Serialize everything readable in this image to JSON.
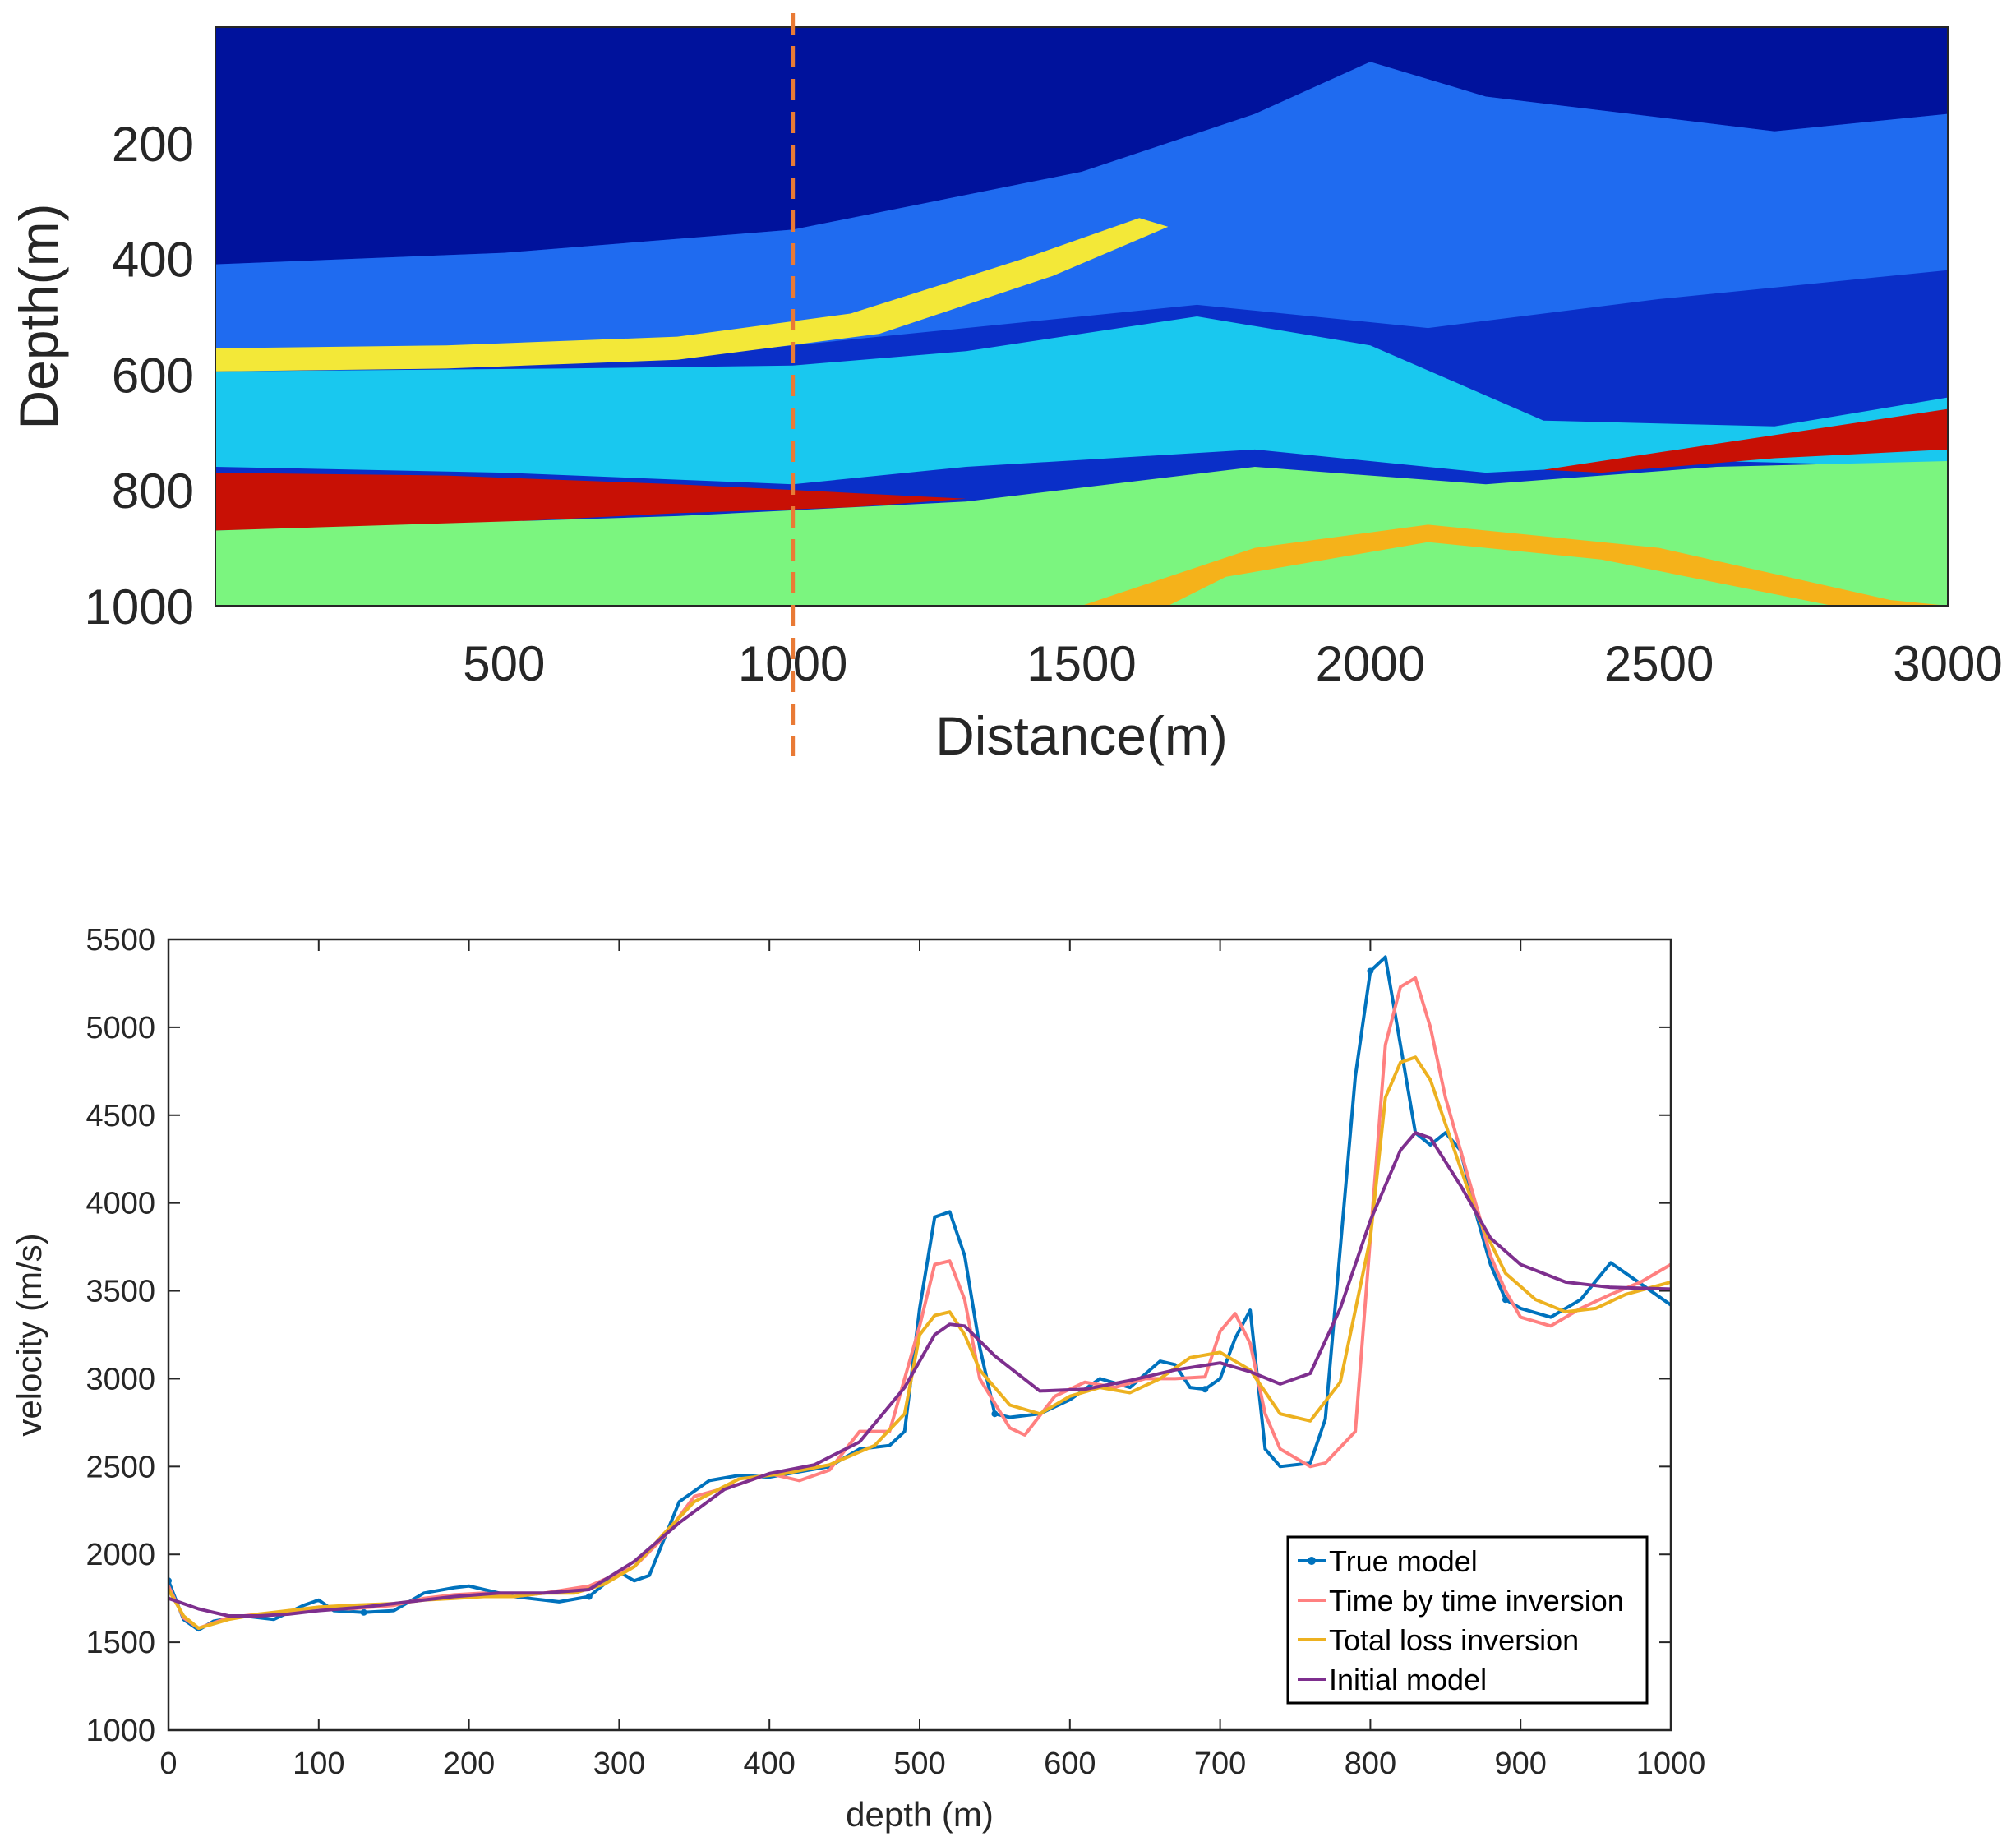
{
  "chart_data": [
    {
      "type": "heatmap",
      "title": "",
      "xlabel": "Distance(m)",
      "ylabel": "Depth(m)",
      "xlim": [
        0,
        3000
      ],
      "ylim": [
        1000,
        0
      ],
      "xticks": [
        500,
        1000,
        1500,
        2000,
        2500,
        3000
      ],
      "yticks": [
        200,
        400,
        600,
        800,
        1000
      ],
      "xtick_labels": [
        "500",
        "1000",
        "1500",
        "2000",
        "2500",
        "3000"
      ],
      "ytick_labels": [
        "200",
        "400",
        "600",
        "800",
        "1000"
      ],
      "colormap": "jet",
      "marker_line": {
        "x": 1000,
        "style": "dashed",
        "color": "#e97a35"
      },
      "bands": [
        {
          "name": "deep-blue-top",
          "points": [
            [
              0,
              0
            ],
            [
              3000,
              0
            ],
            [
              3000,
              150
            ],
            [
              2700,
              180
            ],
            [
              2200,
              120
            ],
            [
              2000,
              60
            ],
            [
              1800,
              150
            ],
            [
              1500,
              250
            ],
            [
              1000,
              350
            ],
            [
              500,
              390
            ],
            [
              0,
              410
            ]
          ],
          "color": "#00129c"
        },
        {
          "name": "layer-low",
          "points": [
            [
              0,
              410
            ],
            [
              500,
              390
            ],
            [
              1000,
              350
            ],
            [
              1500,
              250
            ],
            [
              1800,
              150
            ],
            [
              2000,
              60
            ],
            [
              2200,
              120
            ],
            [
              2700,
              180
            ],
            [
              3000,
              150
            ],
            [
              3000,
              420
            ],
            [
              2500,
              470
            ],
            [
              2100,
              520
            ],
            [
              1700,
              480
            ],
            [
              1300,
              520
            ],
            [
              900,
              560
            ],
            [
              500,
              585
            ],
            [
              0,
              590
            ]
          ],
          "color": "#1f6bf0"
        },
        {
          "name": "reflector-yellow-560",
          "points": [
            [
              0,
              555
            ],
            [
              400,
              550
            ],
            [
              800,
              535
            ],
            [
              1100,
              495
            ],
            [
              1400,
              400
            ],
            [
              1600,
              330
            ],
            [
              1650,
              345
            ],
            [
              1450,
              430
            ],
            [
              1150,
              530
            ],
            [
              800,
              575
            ],
            [
              400,
              590
            ],
            [
              0,
              595
            ]
          ],
          "color": "#f3e838"
        },
        {
          "name": "layer-mid",
          "points": [
            [
              0,
              595
            ],
            [
              600,
              590
            ],
            [
              1000,
              585
            ],
            [
              1300,
              560
            ],
            [
              1700,
              500
            ],
            [
              2000,
              550
            ],
            [
              2300,
              680
            ],
            [
              2700,
              690
            ],
            [
              3000,
              640
            ],
            [
              3000,
              760
            ],
            [
              2600,
              750
            ],
            [
              2200,
              770
            ],
            [
              1800,
              730
            ],
            [
              1300,
              760
            ],
            [
              1000,
              790
            ],
            [
              500,
              770
            ],
            [
              0,
              760
            ]
          ],
          "color": "#19c8ef"
        },
        {
          "name": "reflector-red-800",
          "points": [
            [
              0,
              770
            ],
            [
              400,
              775
            ],
            [
              800,
              790
            ],
            [
              1100,
              805
            ],
            [
              1300,
              815
            ],
            [
              1100,
              830
            ],
            [
              800,
              840
            ],
            [
              400,
              860
            ],
            [
              0,
              870
            ]
          ],
          "color": "#c81005"
        },
        {
          "name": "reflector-red-right",
          "points": [
            [
              2300,
              765
            ],
            [
              2600,
              720
            ],
            [
              3000,
              660
            ],
            [
              3000,
              730
            ],
            [
              2700,
              745
            ],
            [
              2400,
              770
            ]
          ],
          "color": "#c81005"
        },
        {
          "name": "layer-deep",
          "points": [
            [
              0,
              870
            ],
            [
              800,
              845
            ],
            [
              1300,
              820
            ],
            [
              1800,
              760
            ],
            [
              2200,
              790
            ],
            [
              2600,
              760
            ],
            [
              3000,
              750
            ],
            [
              3000,
              1000
            ],
            [
              0,
              1000
            ]
          ],
          "color": "#7bf57f"
        },
        {
          "name": "reflector-yellow-deep",
          "points": [
            [
              1500,
              1000
            ],
            [
              1800,
              900
            ],
            [
              2100,
              860
            ],
            [
              2500,
              900
            ],
            [
              2900,
              990
            ],
            [
              3000,
              1000
            ],
            [
              2800,
              1000
            ],
            [
              2400,
              920
            ],
            [
              2100,
              890
            ],
            [
              1750,
              950
            ],
            [
              1650,
              1000
            ]
          ],
          "color": "#f5b21a"
        }
      ]
    },
    {
      "type": "line",
      "title": "",
      "xlabel": "depth (m)",
      "ylabel": "velocity (m/s)",
      "xlim": [
        0,
        1000
      ],
      "ylim": [
        1000,
        5500
      ],
      "xticks": [
        0,
        100,
        200,
        300,
        400,
        500,
        600,
        700,
        800,
        900,
        1000
      ],
      "yticks": [
        1000,
        1500,
        2000,
        2500,
        3000,
        3500,
        4000,
        4500,
        5000,
        5500
      ],
      "xtick_labels": [
        "0",
        "100",
        "200",
        "300",
        "400",
        "500",
        "600",
        "700",
        "800",
        "900",
        "1000"
      ],
      "ytick_labels": [
        "1000",
        "1500",
        "2000",
        "2500",
        "3000",
        "3500",
        "4000",
        "4500",
        "5000",
        "5500"
      ],
      "legend": {
        "position": "lower-right",
        "entries": [
          "True model",
          "Time by time inversion",
          "Total loss inversion",
          "Initial model"
        ]
      },
      "series": [
        {
          "name": "True model",
          "color": "#0072bd",
          "marker": "dot",
          "x": [
            0,
            10,
            20,
            30,
            50,
            70,
            90,
            100,
            110,
            130,
            150,
            170,
            190,
            200,
            210,
            230,
            240,
            260,
            280,
            300,
            310,
            320,
            340,
            360,
            380,
            400,
            420,
            440,
            460,
            480,
            490,
            500,
            510,
            520,
            530,
            540,
            550,
            560,
            580,
            600,
            620,
            640,
            660,
            670,
            680,
            690,
            700,
            710,
            720,
            730,
            740,
            760,
            770,
            790,
            800,
            810,
            820,
            830,
            840,
            850,
            860,
            870,
            880,
            890,
            900,
            920,
            940,
            960,
            970,
            990,
            1000
          ],
          "y": [
            1850,
            1630,
            1570,
            1620,
            1650,
            1630,
            1710,
            1740,
            1680,
            1670,
            1680,
            1780,
            1810,
            1820,
            1800,
            1760,
            1750,
            1730,
            1760,
            1900,
            1850,
            1880,
            2300,
            2420,
            2450,
            2440,
            2470,
            2500,
            2600,
            2620,
            2700,
            3400,
            3920,
            3950,
            3700,
            3180,
            2800,
            2780,
            2800,
            2880,
            3000,
            2950,
            3100,
            3080,
            2950,
            2940,
            3000,
            3230,
            3390,
            2600,
            2500,
            2520,
            2770,
            4720,
            5320,
            5400,
            4900,
            4400,
            4330,
            4400,
            4300,
            3950,
            3650,
            3450,
            3400,
            3350,
            3450,
            3660,
            3600,
            3480,
            3420
          ]
        },
        {
          "name": "Time by time inversion",
          "color": "#ff8080",
          "marker": "none",
          "x": [
            0,
            10,
            20,
            40,
            60,
            80,
            100,
            120,
            150,
            170,
            190,
            210,
            230,
            250,
            280,
            310,
            330,
            350,
            380,
            400,
            420,
            440,
            460,
            480,
            500,
            510,
            520,
            530,
            540,
            560,
            570,
            590,
            610,
            630,
            650,
            670,
            690,
            700,
            710,
            720,
            730,
            740,
            760,
            770,
            790,
            800,
            810,
            820,
            830,
            840,
            850,
            870,
            880,
            890,
            900,
            920,
            940,
            960,
            980,
            1000
          ],
          "y": [
            1820,
            1640,
            1580,
            1640,
            1660,
            1670,
            1700,
            1690,
            1710,
            1750,
            1770,
            1780,
            1760,
            1780,
            1820,
            1930,
            2100,
            2330,
            2400,
            2460,
            2420,
            2480,
            2700,
            2700,
            3300,
            3650,
            3670,
            3450,
            3000,
            2720,
            2680,
            2900,
            2980,
            2950,
            3000,
            3000,
            3010,
            3270,
            3370,
            3200,
            2800,
            2600,
            2500,
            2520,
            2700,
            3800,
            4900,
            5230,
            5280,
            5000,
            4600,
            4000,
            3700,
            3500,
            3350,
            3300,
            3400,
            3480,
            3550,
            3650
          ]
        },
        {
          "name": "Total loss inversion",
          "color": "#edb120",
          "marker": "none",
          "x": [
            0,
            10,
            20,
            40,
            60,
            80,
            100,
            120,
            150,
            170,
            190,
            210,
            230,
            250,
            270,
            290,
            310,
            330,
            350,
            380,
            410,
            440,
            470,
            490,
            500,
            510,
            520,
            530,
            540,
            560,
            580,
            600,
            620,
            640,
            660,
            680,
            700,
            720,
            740,
            760,
            780,
            800,
            810,
            820,
            830,
            840,
            850,
            870,
            890,
            910,
            930,
            950,
            970,
            1000
          ],
          "y": [
            1800,
            1650,
            1580,
            1630,
            1660,
            1680,
            1700,
            1710,
            1720,
            1740,
            1750,
            1760,
            1760,
            1780,
            1780,
            1830,
            1930,
            2120,
            2300,
            2430,
            2460,
            2510,
            2620,
            2800,
            3250,
            3360,
            3380,
            3250,
            3050,
            2850,
            2800,
            2900,
            2950,
            2920,
            3000,
            3120,
            3150,
            3050,
            2800,
            2760,
            2980,
            3800,
            4600,
            4800,
            4830,
            4700,
            4450,
            3950,
            3600,
            3450,
            3380,
            3400,
            3480,
            3550
          ]
        },
        {
          "name": "Initial model",
          "color": "#7e2f8e",
          "marker": "none",
          "x": [
            0,
            20,
            40,
            60,
            80,
            100,
            130,
            160,
            190,
            220,
            250,
            280,
            310,
            340,
            370,
            400,
            430,
            460,
            490,
            510,
            520,
            530,
            550,
            580,
            610,
            640,
            670,
            700,
            720,
            740,
            760,
            780,
            800,
            820,
            830,
            840,
            860,
            880,
            900,
            930,
            960,
            1000
          ],
          "y": [
            1750,
            1690,
            1650,
            1650,
            1660,
            1680,
            1700,
            1730,
            1760,
            1780,
            1780,
            1800,
            1960,
            2180,
            2370,
            2460,
            2510,
            2640,
            2950,
            3250,
            3310,
            3300,
            3130,
            2930,
            2940,
            2990,
            3050,
            3090,
            3040,
            2970,
            3030,
            3400,
            3900,
            4300,
            4400,
            4370,
            4100,
            3800,
            3650,
            3550,
            3520,
            3510
          ]
        }
      ]
    }
  ]
}
